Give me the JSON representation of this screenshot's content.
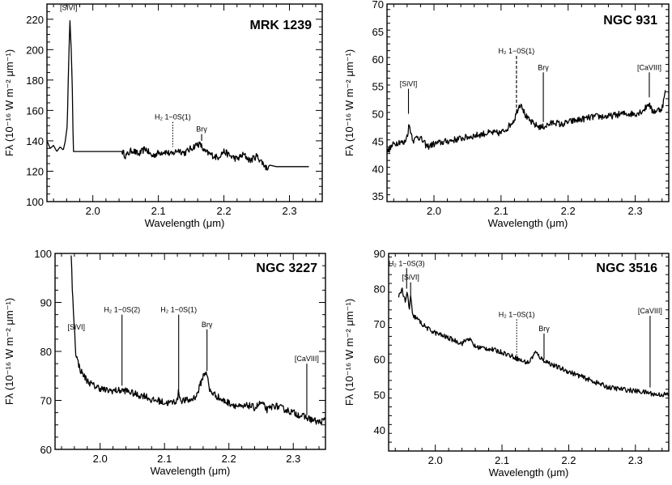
{
  "chart_data": [
    {
      "type": "line",
      "title": "MRK 1239",
      "xlabel": "Wavelength (μm)",
      "ylabel": "Fλ (10⁻¹⁶ W m⁻² μm⁻¹)",
      "xlim": [
        1.93,
        2.35
      ],
      "ylim": [
        100,
        230
      ],
      "xticks": [
        "2.0",
        "2.1",
        "2.2",
        "2.3"
      ],
      "xtick_values": [
        2.0,
        2.1,
        2.2,
        2.3
      ],
      "yticks": [
        "100",
        "120",
        "140",
        "160",
        "180",
        "200",
        "220"
      ],
      "ytick_values": [
        100,
        120,
        140,
        160,
        180,
        200,
        220
      ],
      "series": [
        {
          "name": "MRK 1239 spectrum",
          "x": [
            1.93,
            1.935,
            1.94,
            1.945,
            1.95,
            1.955,
            1.958,
            1.961,
            1.963,
            1.965,
            1.967,
            1.969,
            1.97,
            1.975,
            1.98,
            2.0,
            2.02,
            2.04,
            2.045,
            2.05,
            2.06,
            2.07,
            2.08,
            2.09,
            2.1,
            2.11,
            2.12,
            2.13,
            2.14,
            2.15,
            2.16,
            2.165,
            2.17,
            2.18,
            2.19,
            2.2,
            2.21,
            2.22,
            2.23,
            2.24,
            2.25,
            2.26,
            2.265,
            2.27,
            2.28,
            2.3,
            2.32,
            2.33
          ],
          "y": [
            140,
            135,
            137,
            133,
            136,
            134,
            140,
            150,
            190,
            220,
            200,
            170,
            133,
            133,
            133,
            133,
            133,
            133,
            133,
            130,
            134,
            131,
            135,
            130,
            132,
            133,
            131,
            134,
            132,
            135,
            138,
            137,
            133,
            131,
            129,
            133,
            130,
            128,
            131,
            127,
            130,
            125,
            122,
            124,
            123,
            123,
            123,
            123
          ],
          "noise": 2.2,
          "noise_range": [
            2.045,
            2.268
          ]
        }
      ],
      "annotations": [
        {
          "label": "[SiVI]",
          "x": 1.963,
          "y_end": 224,
          "y_text": 226,
          "style": "none"
        },
        {
          "label": "H₂ 1−0S(1)",
          "x": 2.122,
          "y_end": 136,
          "y_text": 154,
          "style": "dotted"
        },
        {
          "label": "Brγ",
          "x": 2.166,
          "y_end": 140,
          "y_text": 146,
          "style": "solid"
        }
      ]
    },
    {
      "type": "line",
      "title": "NGC 931",
      "xlabel": "Wavelength (μm)",
      "ylabel": "Fλ (10⁻¹⁶ W m⁻² μm⁻¹)",
      "xlim": [
        1.93,
        2.35
      ],
      "ylim": [
        34,
        70
      ],
      "xticks": [
        "2.0",
        "2.1",
        "2.2",
        "2.3"
      ],
      "xtick_values": [
        2.0,
        2.1,
        2.2,
        2.3
      ],
      "yticks": [
        "35",
        "40",
        "45",
        "50",
        "55",
        "60",
        "65",
        "70"
      ],
      "ytick_values": [
        35,
        40,
        45,
        50,
        55,
        60,
        65,
        70
      ],
      "series": [
        {
          "name": "NGC 931 spectrum",
          "x": [
            1.93,
            1.94,
            1.95,
            1.955,
            1.96,
            1.963,
            1.967,
            1.97,
            1.975,
            1.98,
            1.99,
            2.0,
            2.02,
            2.04,
            2.06,
            2.08,
            2.1,
            2.11,
            2.12,
            2.125,
            2.13,
            2.135,
            2.14,
            2.15,
            2.16,
            2.17,
            2.18,
            2.19,
            2.2,
            2.22,
            2.24,
            2.26,
            2.28,
            2.3,
            2.31,
            2.315,
            2.32,
            2.325,
            2.33,
            2.34,
            2.345
          ],
          "y": [
            43,
            44.5,
            45,
            44.5,
            46,
            48,
            46,
            45,
            46,
            45.5,
            44,
            44.5,
            45,
            45.5,
            46,
            46.5,
            46.5,
            47.5,
            49,
            51,
            52,
            50,
            49,
            48,
            47.5,
            48,
            48.5,
            48,
            48.5,
            49,
            49.5,
            49.5,
            50,
            50,
            50.5,
            51,
            52,
            50.5,
            50.5,
            51,
            54
          ],
          "noise": 0.6
        }
      ],
      "annotations": [
        {
          "label": "[SiVI]",
          "x": 1.962,
          "y_end": 50,
          "y_text": 55,
          "style": "solid"
        },
        {
          "label": "H₂ 1−0S(1)",
          "x": 2.123,
          "y_end": 51,
          "y_text": 61,
          "style": "dashed"
        },
        {
          "label": "Brγ",
          "x": 2.163,
          "y_end": 48.5,
          "y_text": 58,
          "style": "solid"
        },
        {
          "label": "[CaVIII]",
          "x": 2.321,
          "y_end": 53,
          "y_text": 58,
          "style": "solid"
        }
      ]
    },
    {
      "type": "line",
      "title": "NGC 3227",
      "xlabel": "Wavelength (μm)",
      "ylabel": "Fλ (10⁻¹⁶ W m⁻² μm⁻¹)",
      "xlim": [
        1.93,
        2.35
      ],
      "ylim": [
        60,
        100
      ],
      "xticks": [
        "2.0",
        "2.1",
        "2.2",
        "2.3"
      ],
      "xtick_values": [
        2.0,
        2.1,
        2.2,
        2.3
      ],
      "yticks": [
        "60",
        "70",
        "80",
        "90",
        "100"
      ],
      "ytick_values": [
        60,
        70,
        80,
        90,
        100
      ],
      "series": [
        {
          "name": "NGC 3227 spectrum",
          "x": [
            1.955,
            1.957,
            1.96,
            1.962,
            1.965,
            1.97,
            1.98,
            1.99,
            2.0,
            2.01,
            2.02,
            2.03,
            2.04,
            2.05,
            2.06,
            2.07,
            2.08,
            2.09,
            2.1,
            2.11,
            2.12,
            2.122,
            2.125,
            2.13,
            2.14,
            2.15,
            2.155,
            2.16,
            2.165,
            2.17,
            2.18,
            2.19,
            2.2,
            2.21,
            2.22,
            2.23,
            2.24,
            2.25,
            2.26,
            2.27,
            2.28,
            2.29,
            2.3,
            2.31,
            2.32,
            2.33,
            2.34,
            2.35
          ],
          "y": [
            100,
            92,
            85,
            80,
            78,
            76,
            74,
            73,
            72.5,
            72,
            72,
            72,
            72,
            71.5,
            71,
            71,
            70,
            70,
            69.5,
            69.5,
            70,
            72,
            70,
            70,
            70,
            71,
            73,
            75,
            76,
            72,
            71,
            70,
            69.5,
            69,
            68.5,
            69,
            68.5,
            69.5,
            68,
            69,
            68.5,
            68,
            67.5,
            67,
            66.5,
            66,
            65.5,
            66
          ],
          "noise": 0.7
        }
      ],
      "annotations": [
        {
          "label": "[SiVI]",
          "x": 1.963,
          "y_end": 83,
          "y_text": 84.5,
          "style": "none"
        },
        {
          "label": "H₂ 1−0S(2)",
          "x": 2.034,
          "y_end": 73,
          "y_text": 88,
          "style": "solid"
        },
        {
          "label": "H₂ 1−0S(1)",
          "x": 2.122,
          "y_end": 72,
          "y_text": 88,
          "style": "solid"
        },
        {
          "label": "Brγ",
          "x": 2.166,
          "y_end": 76,
          "y_text": 85,
          "style": "solid"
        },
        {
          "label": "[CaVIII]",
          "x": 2.321,
          "y_end": 67,
          "y_text": 78,
          "style": "solid"
        }
      ]
    },
    {
      "type": "line",
      "title": "NGC 3516",
      "xlabel": "Wavelength (μm)",
      "ylabel": "Fλ (10⁻¹⁶ W m⁻² μm⁻¹)",
      "xlim": [
        1.93,
        2.35
      ],
      "ylim": [
        34,
        90
      ],
      "xticks": [
        "2.0",
        "2.1",
        "2.2",
        "2.3"
      ],
      "xtick_values": [
        2.0,
        2.1,
        2.2,
        2.3
      ],
      "yticks": [
        "40",
        "50",
        "60",
        "70",
        "80",
        "90"
      ],
      "ytick_values": [
        40,
        50,
        60,
        70,
        80,
        90
      ],
      "series": [
        {
          "name": "NGC 3516 spectrum",
          "x": [
            1.945,
            1.95,
            1.955,
            1.958,
            1.961,
            1.963,
            1.966,
            1.97,
            1.98,
            1.99,
            2.0,
            2.02,
            2.04,
            2.05,
            2.06,
            2.08,
            2.1,
            2.12,
            2.13,
            2.14,
            2.15,
            2.16,
            2.17,
            2.18,
            2.2,
            2.22,
            2.24,
            2.26,
            2.28,
            2.3,
            2.32,
            2.33,
            2.34,
            2.35
          ],
          "y": [
            78,
            80,
            76,
            79,
            74,
            78,
            72,
            72,
            70,
            68.5,
            67.5,
            66,
            64.5,
            66,
            63.5,
            63,
            62,
            60.5,
            59.5,
            59,
            62,
            60,
            59,
            58,
            56.5,
            55,
            53.5,
            52,
            51.5,
            51,
            50.5,
            50,
            50,
            50
          ],
          "noise": 0.7
        }
      ],
      "annotations": [
        {
          "label": "H₂ 1−0S(3)",
          "x": 1.957,
          "y_end": 80,
          "y_text": 86.5,
          "style": "solid"
        },
        {
          "label": "[SiVI]",
          "x": 1.963,
          "y_end": 78,
          "y_text": 82.5,
          "style": "solid"
        },
        {
          "label": "H₂ 1−0S(1)",
          "x": 2.122,
          "y_end": 60,
          "y_text": 72,
          "style": "dotted"
        },
        {
          "label": "Brγ",
          "x": 2.163,
          "y_end": 60,
          "y_text": 68,
          "style": "solid"
        },
        {
          "label": "[CaVIII]",
          "x": 2.322,
          "y_end": 52,
          "y_text": 73,
          "style": "solid"
        }
      ]
    }
  ]
}
